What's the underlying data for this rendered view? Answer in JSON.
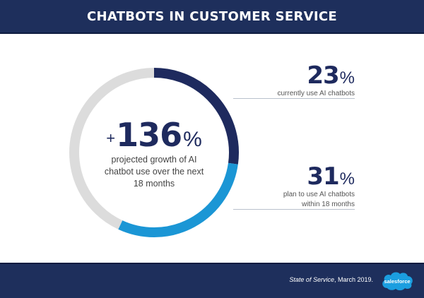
{
  "header": {
    "title": "CHATBOTS IN CUSTOMER SERVICE"
  },
  "center": {
    "prefix": "+",
    "value": "136",
    "unit": "%",
    "description_lines": [
      "projected growth of AI",
      "chatbot use over the next",
      "18 months"
    ]
  },
  "stats": [
    {
      "value": "23",
      "unit": "%",
      "description_lines": [
        "currently use AI chatbots"
      ]
    },
    {
      "value": "31",
      "unit": "%",
      "description_lines": [
        "plan to use AI chatbots",
        "within 18 months"
      ]
    }
  ],
  "footer": {
    "source_title": "State of Service",
    "source_rest": ", March 2019.",
    "logo_text": "salesforce"
  },
  "colors": {
    "navy": "#1e2a5e",
    "blue": "#1b96d5",
    "gray": "#dcdcdc",
    "band": "#1e2f5c",
    "logo": "#1b9ee0"
  },
  "chart_data": {
    "type": "pie",
    "style": "donut-ring",
    "title": "CHATBOTS IN CUSTOMER SERVICE",
    "categories": [
      "Currently use AI chatbots",
      "Plan to use AI chatbots within 18 months",
      "Other"
    ],
    "values": [
      23,
      31,
      46
    ],
    "colors": [
      "#1e2a5e",
      "#1b96d5",
      "#dcdcdc"
    ],
    "center_label": "+136% projected growth of AI chatbot use over the next 18 months",
    "annotations": [
      "23% currently use AI chatbots",
      "31% plan to use AI chatbots within 18 months"
    ],
    "source": "State of Service, March 2019."
  }
}
